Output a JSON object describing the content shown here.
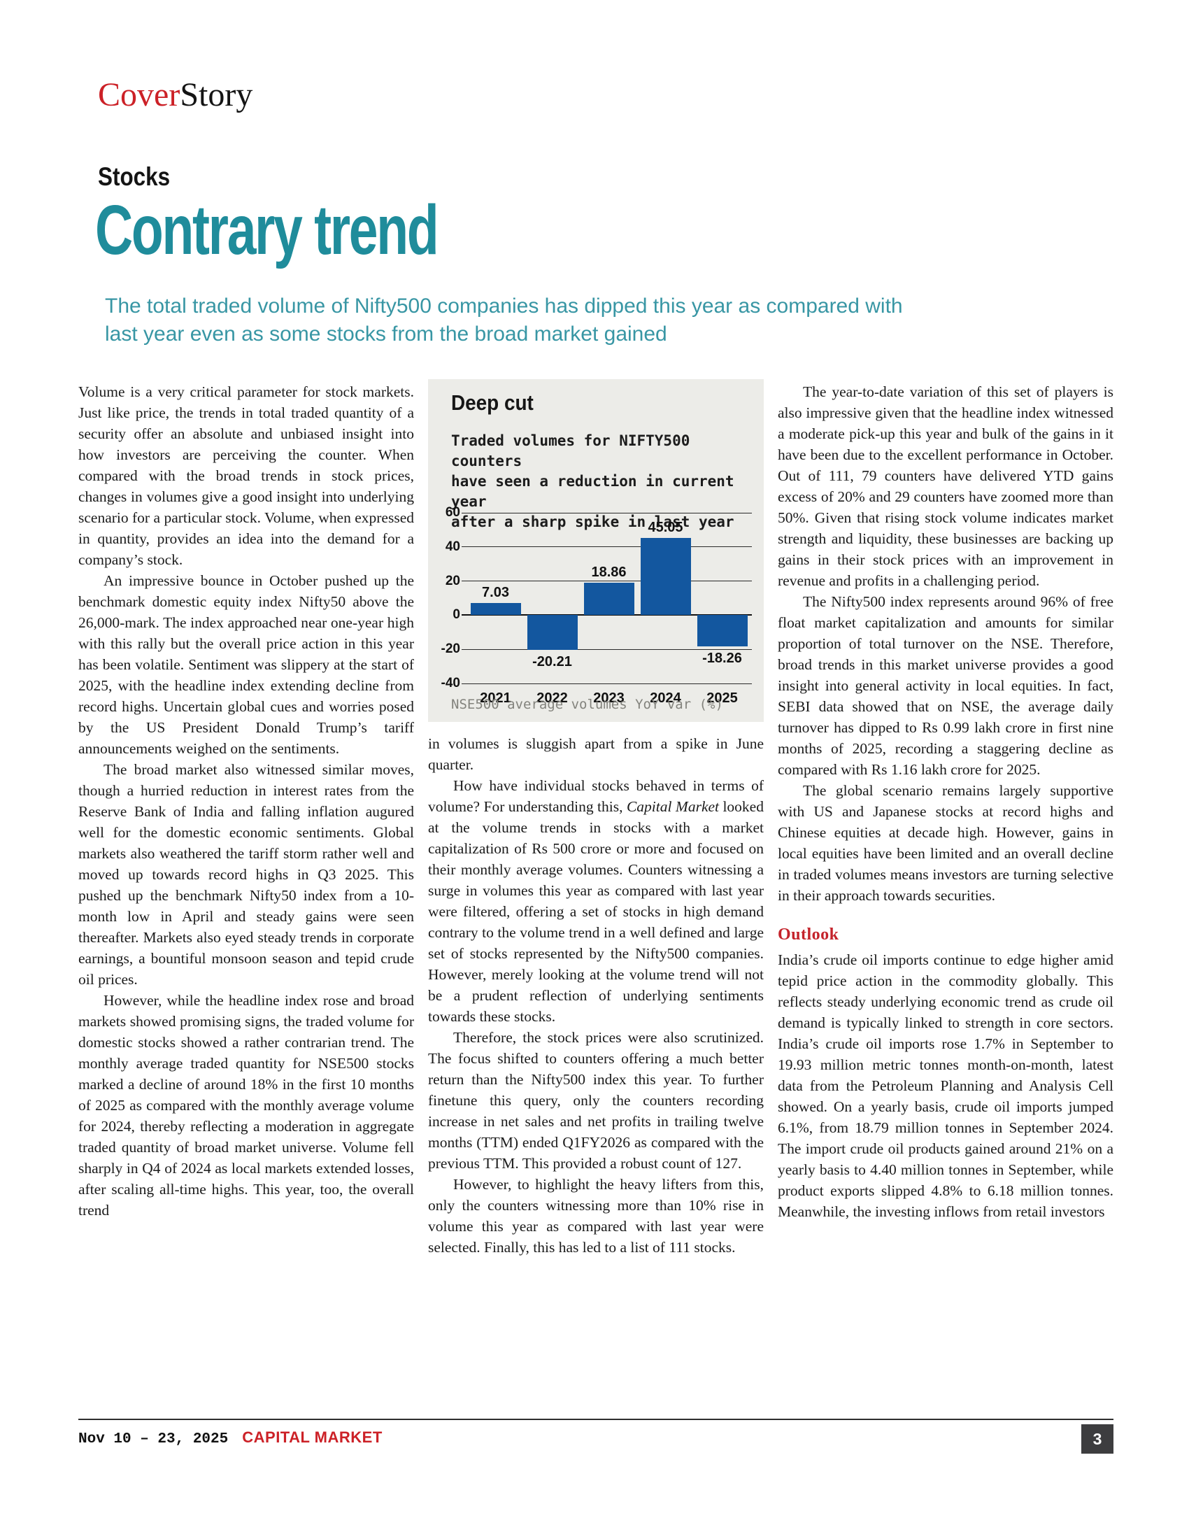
{
  "masthead": {
    "kicker_cover": "Cover",
    "kicker_story": "Story",
    "section_label": "Stocks",
    "headline": "Contrary trend",
    "standfirst_line1": "The total traded volume of Nifty500 companies has dipped this year as compared with",
    "standfirst_line2": "last year even as some stocks from the broad market gained"
  },
  "article": {
    "col1": [
      "Volume is a very critical parameter for stock markets. Just like price, the trends in total traded quantity of a security offer an absolute and unbiased insight into how investors are perceiving the counter. When compared with the broad trends in stock prices, changes in volumes give a good insight into underlying scenario for a particular stock. Volume, when expressed in quantity, provides an idea into the demand for a company’s stock.",
      "An impressive bounce in October pushed up the benchmark domestic equity index Nifty50 above the 26,000-mark. The index approached near one-year high with this rally but the overall price action in this year has been volatile. Sentiment was slippery at the start of 2025, with the headline index extending decline from record highs. Uncertain global cues and worries posed by the US President Donald Trump’s tariff announcements weighed on the sentiments.",
      "The broad market also witnessed similar moves, though a hurried reduction in interest rates from the Reserve Bank of India and falling inflation augured well for the domestic economic sentiments. Global markets also weathered the tariff storm rather well and moved up towards record highs in Q3 2025. This pushed up the benchmark Nifty50 index from a 10-month low in April and steady gains were seen thereafter. Markets also eyed steady trends in corporate earnings, a bountiful monsoon season and tepid crude oil prices.",
      "However, while the headline index rose and broad markets showed promising signs, the traded volume for domestic stocks showed a rather contrarian trend. The monthly average traded quantity for NSE500 stocks marked a decline of around 18% in the first 10 months of 2025 as compared with the monthly average volume for 2024, thereby reflecting a moderation in aggregate traded quantity of broad market universe. Volume fell sharply in Q4 of 2024 as local markets extended losses, after scaling all-time highs. This year, too, the overall trend"
    ],
    "col2_intro": "in volumes is sluggish apart from a spike in June quarter.",
    "col2_p2": {
      "pre": "How have individual stocks behaved in terms of volume? For understanding this, ",
      "italic": "Capital Market",
      "post": " looked at the volume trends in stocks with a market capitalization of Rs 500 crore or more and focused on their monthly average volumes. Counters witnessing a surge in volumes this year as compared with last year were filtered, offering a set of stocks in high demand contrary to the volume trend in a well defined and large set of stocks represented by the Nifty500 companies. However, merely looking at the volume trend will not be a prudent reflection of underlying sentiments towards these stocks."
    },
    "col2_rest": [
      "Therefore, the stock prices were also scrutinized. The focus shifted to counters offering a much better return than the Nifty500 index this year. To further finetune this query, only the counters recording increase in net sales and net profits in trailing twelve months (TTM) ended Q1FY2026 as compared with the previous TTM. This provided a robust count of 127.",
      "However, to highlight the heavy lifters from this, only the counters witnessing more than 10% rise in volume this year as compared with last year were selected. Finally, this has led to a list of 111 stocks."
    ],
    "col3": [
      "The year-to-date variation of this set of players is also impressive given that the headline index witnessed a moderate pick-up this year and bulk of the gains in it have been due to the excellent performance in October. Out of 111, 79 counters have delivered YTD gains excess of 20% and 29 counters have zoomed more than 50%. Given that rising stock volume indicates market strength and liquidity, these businesses are backing up gains in their stock prices with an improvement in revenue and profits in a challenging period.",
      "The Nifty500 index represents around 96% of free float market capitalization and amounts for similar proportion of total turnover on the NSE. Therefore, broad trends in this market universe provides a good insight into general activity in local equities. In fact, SEBI data showed that on NSE, the average daily turnover has dipped to Rs 0.99 lakh crore in first nine months of 2025, recording a staggering decline as compared with Rs 1.16 lakh crore for 2025.",
      "The global scenario remains largely supportive with US and Japanese stocks at record highs and Chinese equities at decade high. However, gains in local equities have been limited and an overall decline in traded volumes means investors are turning selective in their approach towards securities."
    ],
    "outlook_heading": "Outlook",
    "outlook_body": "India’s crude oil imports continue to edge higher amid tepid price action in the commodity globally. This reflects steady underlying economic trend as crude oil demand is typically linked to strength in core sectors. India’s crude oil imports rose 1.7% in September to 19.93 million metric tonnes month-on-month, latest data from the Petroleum Planning and Analysis Cell showed. On a yearly basis, crude oil imports jumped 6.1%, from 18.79 million tonnes in September 2024. The import crude oil products gained around 21% on a yearly basis to 4.40 million tonnes in September, while product exports slipped 4.8% to 6.18 million tonnes. Meanwhile, the investing inflows from retail investors"
  },
  "chart_data": {
    "type": "bar",
    "title": "Deep cut",
    "subtitle_lines": [
      "Traded volumes for NIFTY500 counters",
      "have seen a reduction in current year",
      "after a sharp spike in last year"
    ],
    "categories": [
      "2021",
      "2022",
      "2023",
      "2024",
      "2025"
    ],
    "values": [
      7.03,
      -20.21,
      18.86,
      45.05,
      -18.26
    ],
    "value_labels": [
      "7.03",
      "-20.21",
      "18.86",
      "45.05",
      "-18.26"
    ],
    "xlabel": "",
    "ylabel": "",
    "ylim": [
      -40,
      60
    ],
    "ytick_step": 20,
    "grid": true,
    "legend": "none",
    "bar_color": "#13579f",
    "box_background": "#ecece8",
    "footnote": "NSE500 average volumes YoY var (%)"
  },
  "footer": {
    "date_range": "Nov 10 – 23, 2025",
    "magazine": "CAPITAL MARKET",
    "page_number": "3"
  },
  "colors": {
    "headline_teal": "#1f8c9b",
    "standfirst_teal": "#3896a4",
    "brand_red": "#cc2127",
    "bar_blue": "#13579f",
    "chart_box_gray": "#ecece8",
    "page_number_box": "#3d3d3f"
  }
}
